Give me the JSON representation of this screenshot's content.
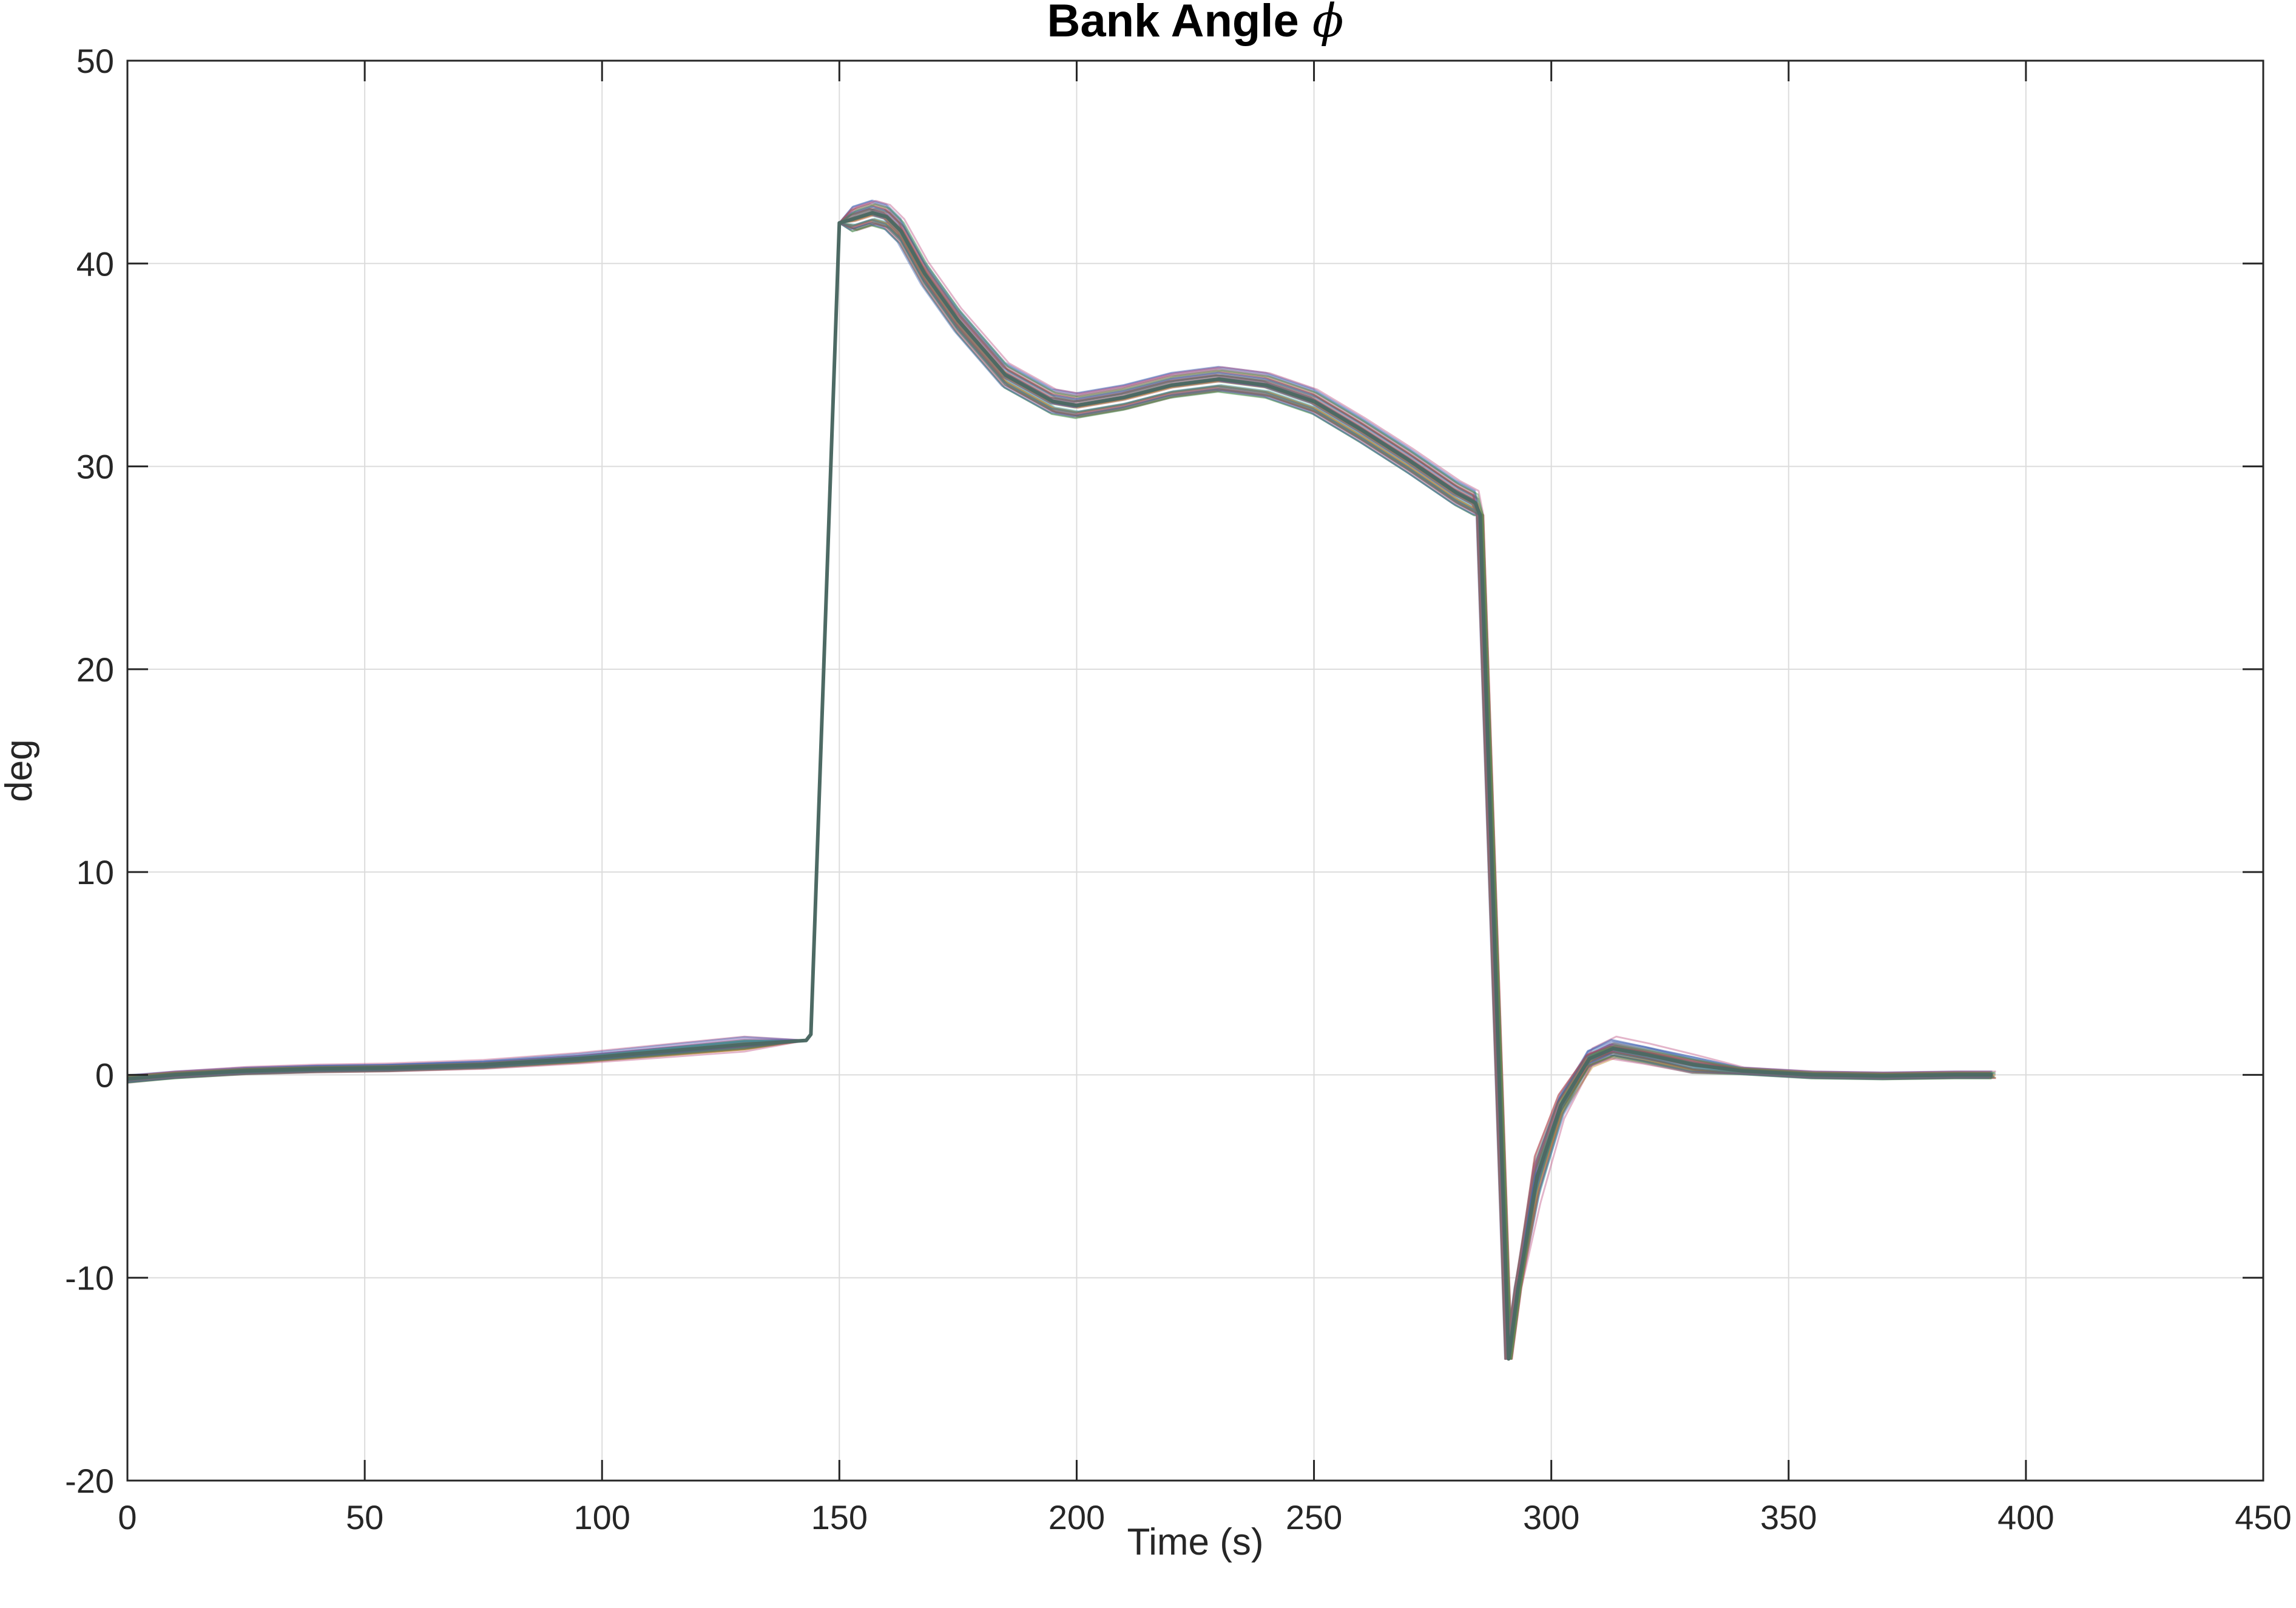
{
  "chart_data": {
    "type": "line",
    "title": "Bank Angle",
    "title_symbol": "ϕ",
    "xlabel": "Time (s)",
    "ylabel": "deg",
    "xlim": [
      0,
      450
    ],
    "ylim": [
      -20,
      50
    ],
    "xticks": [
      "0",
      "50",
      "100",
      "150",
      "200",
      "250",
      "300",
      "350",
      "400",
      "450"
    ],
    "yticks": [
      "-20",
      "-10",
      "0",
      "10",
      "20",
      "30",
      "40",
      "50"
    ],
    "grid": true,
    "legend": "none",
    "line_colors": [
      "#4d6a64",
      "#a8453a",
      "#3f5fb0",
      "#4a9a4a",
      "#8a4aa8",
      "#c28a2a",
      "#3a9aa8",
      "#c25a8a",
      "#6a6a6a"
    ],
    "series": [
      {
        "x": [
          0,
          10,
          25,
          40,
          55,
          75,
          95,
          115,
          130,
          143,
          144,
          150,
          153,
          157,
          160,
          163,
          168,
          175,
          185,
          195,
          200,
          210,
          220,
          230,
          240,
          250,
          260,
          270,
          280,
          284,
          285,
          291,
          293,
          297,
          302,
          308,
          313,
          320,
          330,
          340,
          355,
          370,
          385,
          393
        ],
        "y": [
          -0.2,
          0.0,
          0.2,
          0.3,
          0.35,
          0.5,
          0.8,
          1.2,
          1.5,
          1.7,
          2.0,
          42.0,
          42.2,
          42.5,
          42.3,
          41.6,
          39.5,
          37.2,
          34.5,
          33.2,
          33.0,
          33.4,
          34.0,
          34.3,
          34.0,
          33.2,
          31.8,
          30.3,
          28.7,
          28.2,
          27.6,
          -14.0,
          -10.5,
          -5.0,
          -1.5,
          0.8,
          1.3,
          1.0,
          0.5,
          0.2,
          0.0,
          -0.05,
          0.0,
          0.0
        ]
      }
    ]
  }
}
